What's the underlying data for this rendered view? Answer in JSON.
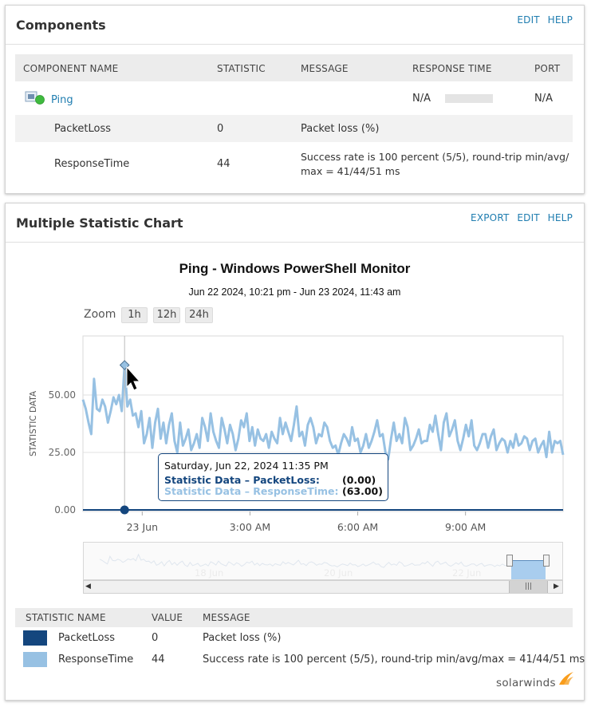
{
  "components": {
    "title": "Components",
    "links": [
      "EDIT",
      "HELP"
    ],
    "columns": [
      "COMPONENT NAME",
      "STATISTIC",
      "MESSAGE",
      "RESPONSE TIME",
      "PORT"
    ],
    "component": {
      "name": "Ping",
      "response_time": "N/A",
      "port": "N/A",
      "status_color": "#3fba3f"
    },
    "rows": [
      {
        "name": "PacketLoss",
        "statistic": "0",
        "message": "Packet loss (%)"
      },
      {
        "name": "ResponseTime",
        "statistic": "44",
        "message_line1": "Success rate is 100 percent (5/5), round-trip min/avg/",
        "message_line2": "max = 41/44/51 ms"
      }
    ]
  },
  "chart_panel": {
    "title": "Multiple Statistic Chart",
    "links": [
      "EXPORT",
      "EDIT",
      "HELP"
    ],
    "zoom_label": "Zoom",
    "zoom_options": [
      "1h",
      "12h",
      "24h"
    ],
    "tooltip": {
      "date": "Saturday, Jun 22, 2024 11:35 PM",
      "line1_label": "Statistic Data – PacketLoss:",
      "line1_value": "(0.00)",
      "line2_label": "Statistic Data – ResponseTime:",
      "line2_value": "(63.00)"
    },
    "navigator_labels": [
      "18 Jun",
      "20 Jun",
      "22 Jun"
    ],
    "legend_columns": [
      "STATISTIC NAME",
      "VALUE",
      "MESSAGE"
    ],
    "legend_rows": [
      {
        "name": "PacketLoss",
        "value": "0",
        "message": "Packet loss (%)",
        "color": "#14467e"
      },
      {
        "name": "ResponseTime",
        "value": "44",
        "message": "Success rate is 100 percent (5/5), round-trip min/avg/max = 41/44/51 ms",
        "color": "#97c1e3"
      }
    ],
    "brand": "solarwinds"
  },
  "chart_data": {
    "type": "line",
    "title": "Ping - Windows PowerShell Monitor",
    "subtitle": "Jun 22 2024, 10:21 pm - Jun 23 2024, 11:43 am",
    "ylabel": "STATISTIC DATA",
    "xlabel": "",
    "ylim": [
      0,
      75
    ],
    "y_ticks": [
      "0.00",
      "25.00",
      "50.00"
    ],
    "x_range": [
      "2024-06-22 22:21",
      "2024-06-23 11:43"
    ],
    "x_ticks": [
      {
        "label": "23 Jun",
        "time": "2024-06-23 00:00"
      },
      {
        "label": "3:00 AM",
        "time": "2024-06-23 03:00"
      },
      {
        "label": "6:00 AM",
        "time": "2024-06-23 06:00"
      },
      {
        "label": "9:00 AM",
        "time": "2024-06-23 09:00"
      }
    ],
    "grid": true,
    "series": [
      {
        "name": "Statistic Data – ResponseTime",
        "color": "#97c1e3",
        "values": [
          48,
          44,
          38,
          33,
          57,
          44,
          43,
          48,
          45,
          38,
          43,
          49,
          46,
          50,
          43,
          63,
          45,
          48,
          41,
          42,
          36,
          43,
          29,
          33,
          40,
          27,
          38,
          44,
          31,
          38,
          29,
          37,
          42,
          30,
          25,
          38,
          28,
          31,
          35,
          26,
          29,
          33,
          27,
          40,
          36,
          30,
          42,
          34,
          30,
          27,
          40,
          35,
          29,
          37,
          33,
          26,
          31,
          39,
          36,
          42,
          30,
          36,
          28,
          35,
          31,
          30,
          33,
          27,
          34,
          31,
          29,
          40,
          33,
          38,
          34,
          30,
          37,
          45,
          32,
          34,
          28,
          37,
          40,
          36,
          29,
          33,
          32,
          38,
          36,
          30,
          27,
          28,
          24,
          29,
          33,
          31,
          28,
          36,
          30,
          31,
          25,
          28,
          33,
          27,
          30,
          34,
          39,
          32,
          33,
          25,
          22,
          31,
          38,
          30,
          33,
          29,
          40,
          36,
          26,
          28,
          31,
          35,
          29,
          30,
          30,
          37,
          34,
          41,
          33,
          26,
          38,
          42,
          32,
          35,
          39,
          30,
          26,
          31,
          37,
          32,
          39,
          28,
          26,
          29,
          33,
          33,
          27,
          32,
          35,
          26,
          29,
          31,
          30,
          25,
          30,
          27,
          33,
          28,
          29,
          32,
          31,
          26,
          30,
          31,
          25,
          28,
          30,
          23,
          34,
          25,
          30,
          29,
          30,
          24
        ]
      },
      {
        "name": "Statistic Data – PacketLoss",
        "color": "#14467e",
        "values": [
          0,
          0,
          0,
          0,
          0,
          0,
          0,
          0,
          0,
          0,
          0,
          0,
          0,
          0,
          0,
          0,
          0,
          0,
          0,
          0,
          0,
          0,
          0,
          0,
          0,
          0,
          0,
          0,
          0,
          0,
          0,
          0,
          0,
          0,
          0,
          0,
          0,
          0,
          0,
          0,
          0,
          0,
          0,
          0,
          0,
          0,
          0,
          0,
          0,
          0,
          0,
          0,
          0,
          0,
          0,
          0,
          0,
          0,
          0,
          0,
          0,
          0,
          0,
          0,
          0,
          0,
          0,
          0,
          0,
          0,
          0,
          0,
          0,
          0,
          0,
          0,
          0,
          0,
          0,
          0,
          0,
          0,
          0,
          0,
          0,
          0,
          0,
          0,
          0,
          0,
          0,
          0,
          0,
          0,
          0,
          0,
          0,
          0,
          0,
          0,
          0,
          0,
          0,
          0,
          0,
          0,
          0,
          0,
          0,
          0,
          0,
          0,
          0,
          0,
          0,
          0,
          0,
          0,
          0,
          0,
          0,
          0,
          0,
          0,
          0,
          0,
          0,
          0,
          0,
          0,
          0,
          0,
          0,
          0,
          0,
          0,
          0,
          0,
          0,
          0,
          0,
          0,
          0,
          0,
          0,
          0,
          0,
          0,
          0,
          0,
          0,
          0,
          0,
          0,
          0,
          0,
          0,
          0,
          0,
          0,
          0,
          0,
          0,
          0,
          0,
          0,
          0,
          0,
          0,
          0,
          0,
          0,
          0,
          0,
          0
        ]
      }
    ]
  }
}
